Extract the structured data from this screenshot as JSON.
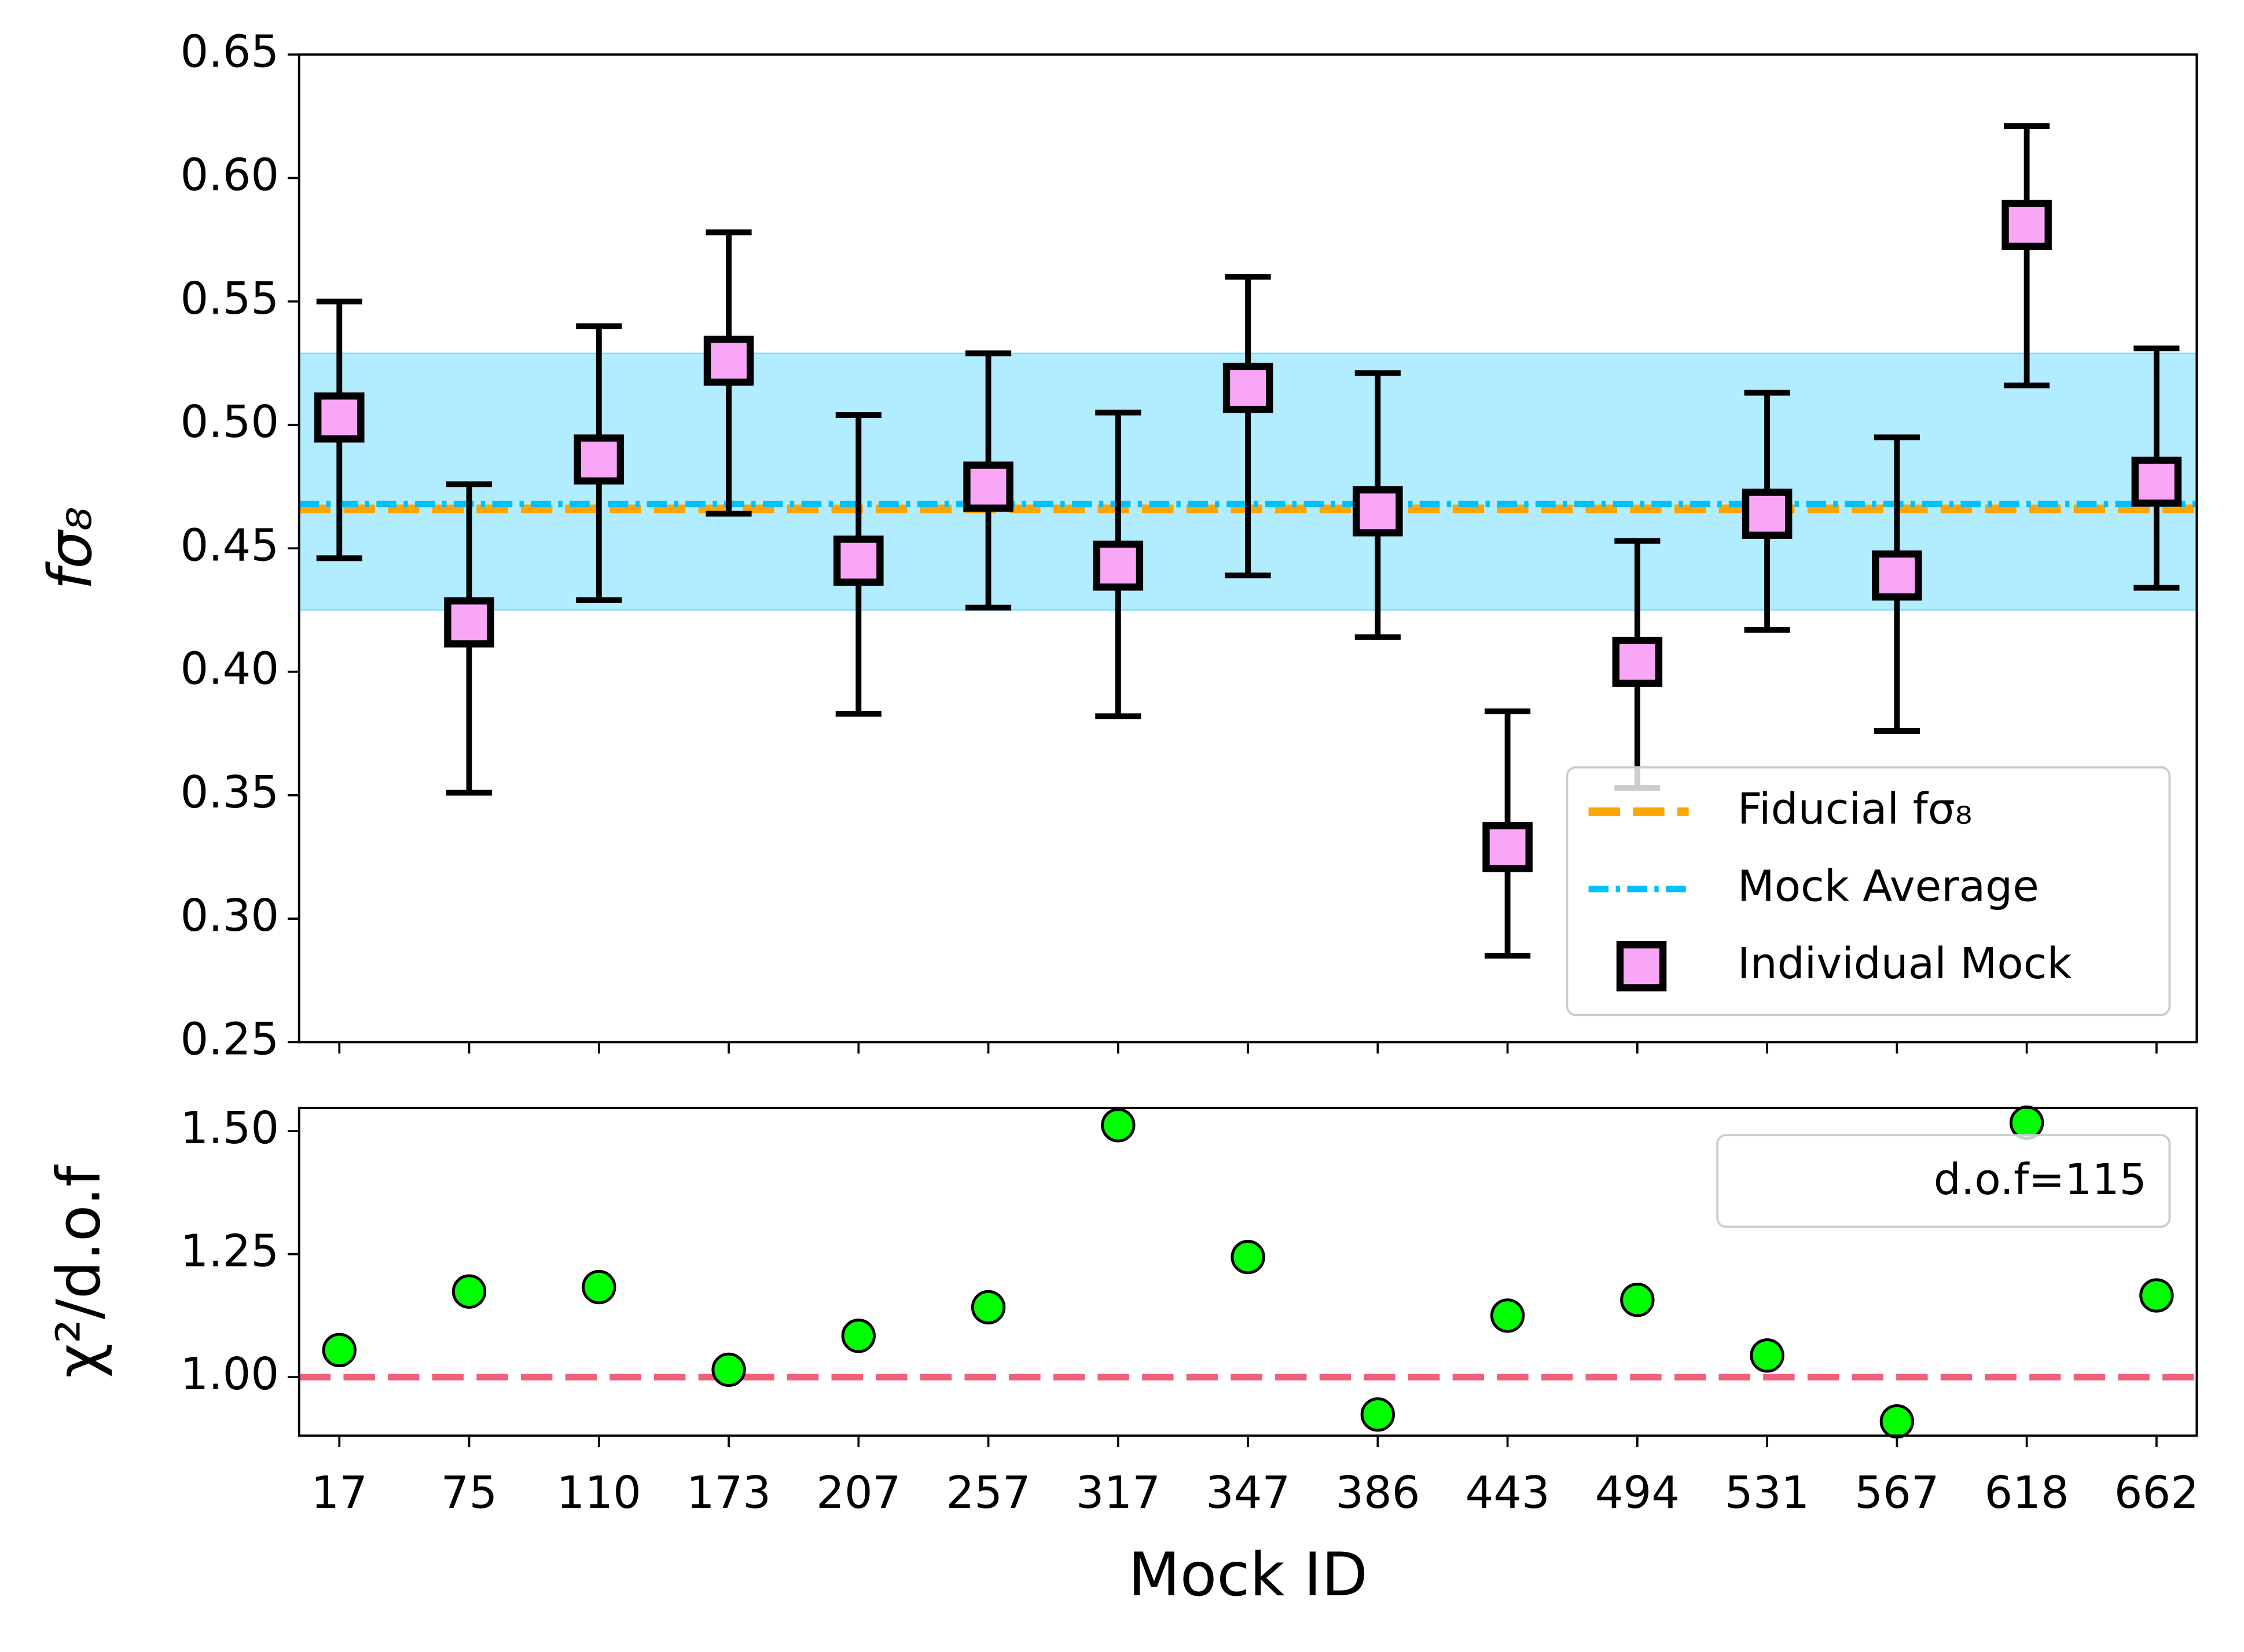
{
  "chart_data": [
    {
      "type": "errorbar",
      "categories": [
        "17",
        "75",
        "110",
        "173",
        "207",
        "257",
        "317",
        "347",
        "386",
        "443",
        "494",
        "531",
        "567",
        "618",
        "662"
      ],
      "series": [
        {
          "name": "Individual Mock",
          "color": "#f9a6f6",
          "values": [
            0.503,
            0.42,
            0.486,
            0.526,
            0.445,
            0.475,
            0.443,
            0.515,
            0.465,
            0.329,
            0.404,
            0.464,
            0.439,
            0.581,
            0.477
          ],
          "errors_minus": [
            0.057,
            0.069,
            0.057,
            0.062,
            0.062,
            0.049,
            0.061,
            0.076,
            0.051,
            0.044,
            0.051,
            0.047,
            0.063,
            0.065,
            0.043
          ],
          "errors_plus": [
            0.047,
            0.056,
            0.054,
            0.052,
            0.059,
            0.054,
            0.062,
            0.045,
            0.056,
            0.055,
            0.049,
            0.049,
            0.056,
            0.04,
            0.054
          ]
        }
      ],
      "hlines": [
        {
          "name": "Fiducial fσ₈",
          "value": 0.466,
          "color": "#ffa500",
          "style": "dashed"
        },
        {
          "name": "Mock Average",
          "value": 0.468,
          "color": "#00bfff",
          "style": "dashdot"
        }
      ],
      "band": [
        0.425,
        0.529
      ],
      "band_color": "#00bfff",
      "ylabel": "fσ₈",
      "ylim": [
        0.25,
        0.65
      ],
      "yticks": [
        0.25,
        {
          "value": 0.3,
          "label": "0.30"
        },
        0.35,
        {
          "value": 0.4,
          "label": "0.40"
        },
        0.45,
        {
          "value": 0.5,
          "label": "0.50"
        },
        0.55,
        {
          "value": 0.6,
          "label": "0.60"
        },
        0.65
      ],
      "legend": "lower right"
    },
    {
      "type": "scatter",
      "categories": [
        "17",
        "75",
        "110",
        "173",
        "207",
        "257",
        "317",
        "347",
        "386",
        "443",
        "494",
        "531",
        "567",
        "618",
        "662"
      ],
      "series": [
        {
          "color": "#00ff00",
          "values": [
            1.055,
            1.174,
            1.183,
            1.015,
            1.084,
            1.142,
            1.512,
            1.244,
            0.924,
            1.125,
            1.157,
            1.044,
            0.91,
            1.517,
            1.166
          ]
        }
      ],
      "hlines": [
        {
          "value": 1.0,
          "color": "#f0607a",
          "style": "dashed"
        }
      ],
      "xlabel": "Mock ID",
      "ylabel": "χ²/d.o.f",
      "annotation": "d.o.f=115",
      "ylim": [
        0.881,
        1.547
      ],
      "yticks": [
        {
          "value": 1.0,
          "label": "1.00"
        },
        1.25,
        {
          "value": 1.5,
          "label": "1.50"
        }
      ]
    }
  ]
}
